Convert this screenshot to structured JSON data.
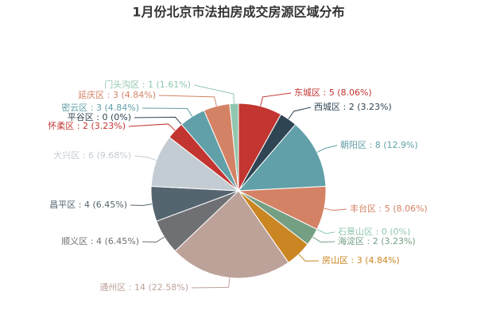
{
  "chart_data": {
    "type": "pie",
    "title": "1月份北京市法拍房成交房源区域分布",
    "categories": [
      "东城区",
      "西城区",
      "朝阳区",
      "丰台区",
      "石景山区",
      "海淀区",
      "房山区",
      "通州区",
      "顺义区",
      "昌平区",
      "大兴区",
      "怀柔区",
      "平谷区",
      "密云区",
      "延庆区",
      "门头沟区"
    ],
    "values": [
      5,
      2,
      8,
      5,
      0,
      2,
      3,
      14,
      4,
      4,
      6,
      2,
      0,
      3,
      3,
      1
    ],
    "label_separator": " : ",
    "value_labels": [
      "5 (8.06%)",
      "2 (3.23%)",
      "8 (12.9%)",
      "5 (8.06%)",
      "0 (0%)",
      "2 (3.23%)",
      "3 (4.84%)",
      "14 (22.58%)",
      "4 (6.45%)",
      "4 (6.45%)",
      "6 (9.68%)",
      "2 (3.23%)",
      "0 (0%)",
      "3 (4.84%)",
      "3 (4.84%)",
      "1 (1.61%)"
    ],
    "colors": [
      "#c23531",
      "#2f4554",
      "#61a0a8",
      "#d48265",
      "#91c7ae",
      "#749f83",
      "#ca8622",
      "#bda29a",
      "#6e7074",
      "#546570",
      "#c4ccd3",
      "#c23531",
      "#2f4554",
      "#61a0a8",
      "#d48265",
      "#91c7ae"
    ]
  }
}
